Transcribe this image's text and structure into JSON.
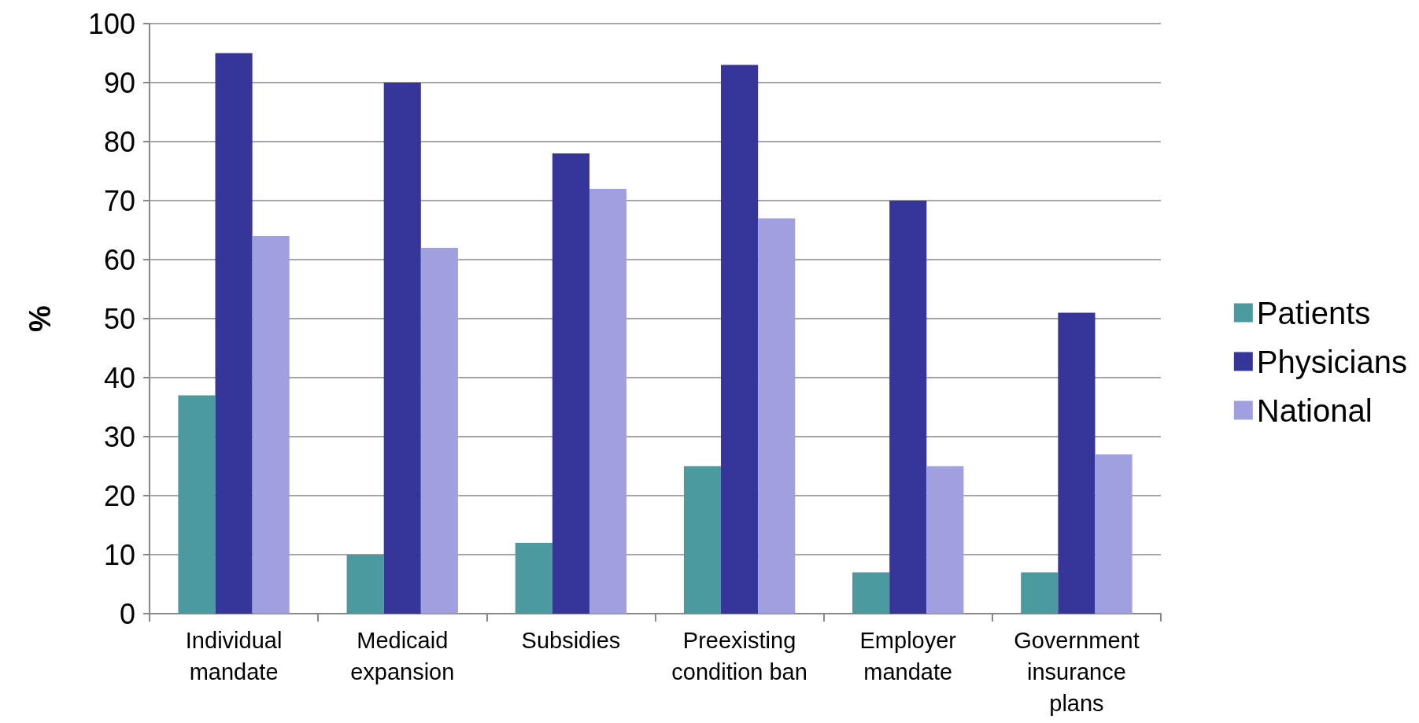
{
  "chart_data": {
    "type": "bar",
    "ylabel": "%",
    "categories": [
      "Individual\nmandate",
      "Medicaid\nexpansion",
      "Subsidies",
      "Preexisting\ncondition ban",
      "Employer\nmandate",
      "Government\ninsurance\nplans"
    ],
    "series": [
      {
        "name": "Patients",
        "color": "#4a9aa0",
        "values": [
          37,
          10,
          12,
          25,
          7,
          7
        ]
      },
      {
        "name": "Physicians",
        "color": "#35359a",
        "values": [
          95,
          90,
          78,
          93,
          70,
          51
        ]
      },
      {
        "name": "National",
        "color": "#a0a0e0",
        "values": [
          64,
          62,
          72,
          67,
          25,
          27
        ]
      }
    ],
    "ylim": [
      0,
      100
    ],
    "yticks": [
      0,
      10,
      20,
      30,
      40,
      50,
      60,
      70,
      80,
      90,
      100
    ],
    "grid": "y",
    "legend": "right"
  }
}
